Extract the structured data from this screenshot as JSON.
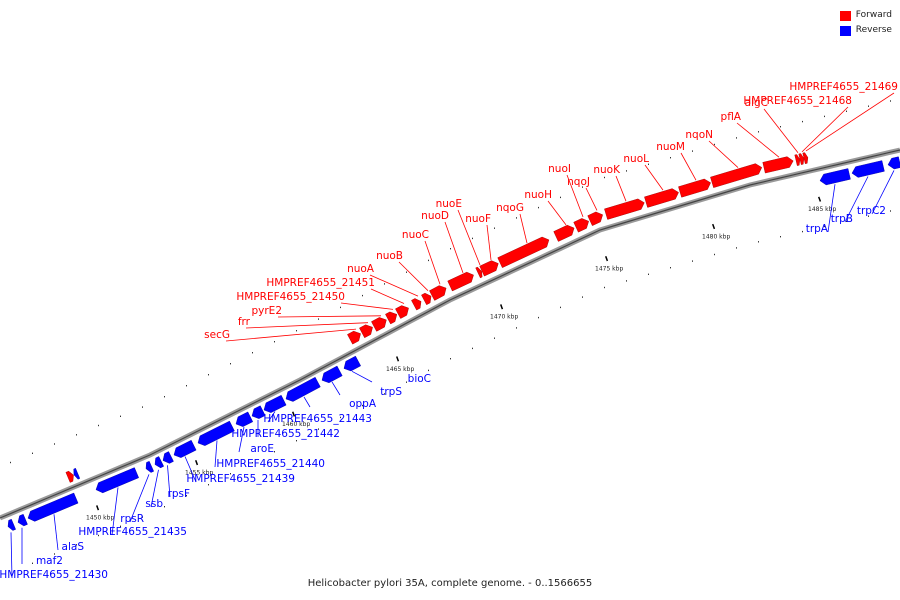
{
  "legend": {
    "forward": {
      "label": "Forward",
      "color": "#ff0000"
    },
    "reverse": {
      "label": "Reverse",
      "color": "#0000ff"
    }
  },
  "caption": "Helicobacter pylori 35A, complete genome. - 0..1566655",
  "ticks": [
    "1450 kbp",
    "1455 kbp",
    "1460 kbp",
    "1465 kbp",
    "1470 kbp",
    "1475 kbp",
    "1480 kbp",
    "1485 kbp"
  ],
  "reverse_genes": [
    {
      "label": "HMPREF4655_21430"
    },
    {
      "label": "maf2"
    },
    {
      "label": "alaS"
    },
    {
      "label": "HMPREF4655_21435"
    },
    {
      "label": "rpsR"
    },
    {
      "label": "ssb"
    },
    {
      "label": "rpsF"
    },
    {
      "label": "HMPREF4655_21439"
    },
    {
      "label": "HMPREF4655_21440"
    },
    {
      "label": "aroE"
    },
    {
      "label": "HMPREF4655_21442"
    },
    {
      "label": "HMPREF4655_21443"
    },
    {
      "label": "oppA"
    },
    {
      "label": "trpS"
    },
    {
      "label": "bioC"
    },
    {
      "label": "trpA"
    },
    {
      "label": "trpB"
    },
    {
      "label": "trpC2"
    }
  ],
  "forward_genes": [
    {
      "label": "secG"
    },
    {
      "label": "frr"
    },
    {
      "label": "pyrE2"
    },
    {
      "label": "HMPREF4655_21450"
    },
    {
      "label": "HMPREF4655_21451"
    },
    {
      "label": "nuoA"
    },
    {
      "label": "nuoB"
    },
    {
      "label": "nuoC"
    },
    {
      "label": "nuoD"
    },
    {
      "label": "nuoE"
    },
    {
      "label": "nuoF"
    },
    {
      "label": "nqoG"
    },
    {
      "label": "nuoH"
    },
    {
      "label": "nuoI"
    },
    {
      "label": "nqoJ"
    },
    {
      "label": "nuoK"
    },
    {
      "label": "nuoL"
    },
    {
      "label": "nuoM"
    },
    {
      "label": "nqoN"
    },
    {
      "label": "pflA"
    },
    {
      "label": "algC"
    },
    {
      "label": "HMPREF4655_21468"
    },
    {
      "label": "HMPREF4655_21469"
    }
  ]
}
